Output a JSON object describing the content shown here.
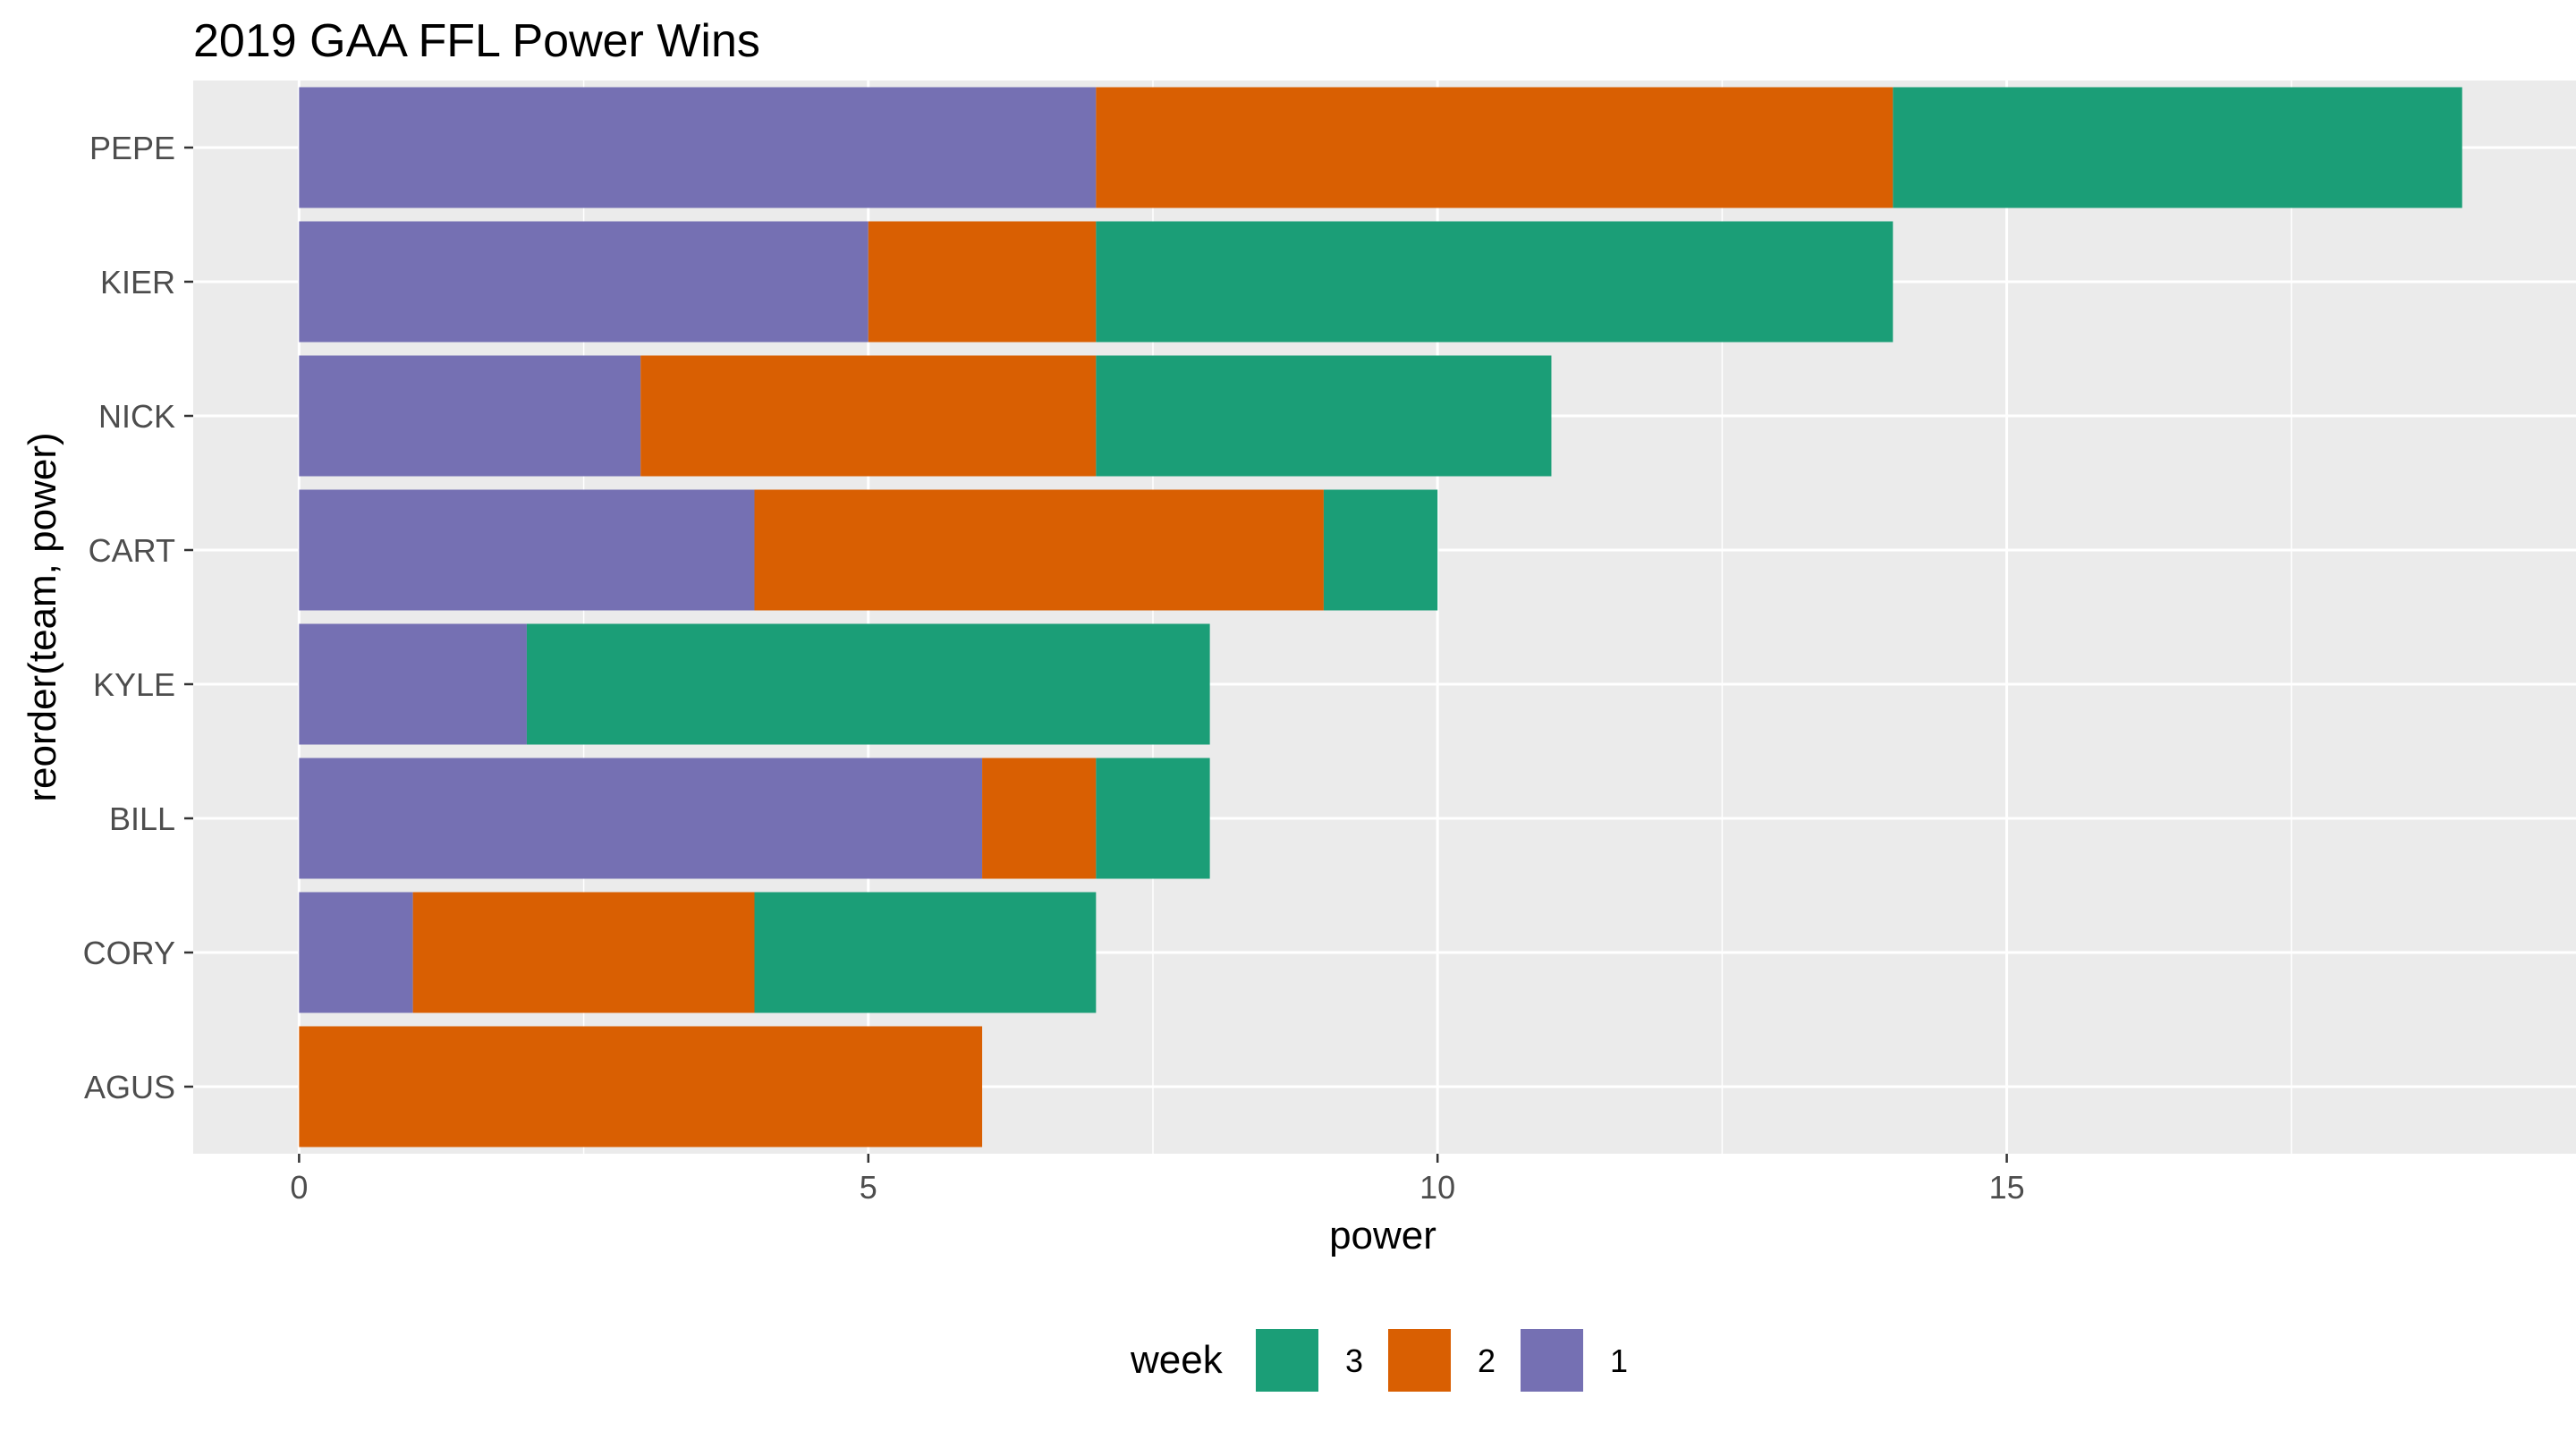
{
  "chart_data": {
    "type": "bar",
    "orientation": "horizontal",
    "stacked": true,
    "title": "2019 GAA FFL Power Wins",
    "xlabel": "power",
    "ylabel": "reorder(team, power)",
    "categories": [
      "PEPE",
      "KIER",
      "NICK",
      "CART",
      "KYLE",
      "BILL",
      "CORY",
      "AGUS"
    ],
    "series": [
      {
        "name": "1",
        "color": "#7570b3",
        "values": [
          7,
          5,
          3,
          4,
          2,
          6,
          1,
          0
        ]
      },
      {
        "name": "2",
        "color": "#d95f02",
        "values": [
          7,
          2,
          4,
          5,
          0,
          1,
          3,
          6
        ]
      },
      {
        "name": "3",
        "color": "#1b9e77",
        "values": [
          5,
          7,
          4,
          1,
          6,
          1,
          3,
          0
        ]
      }
    ],
    "stack_order_from_zero": [
      "1",
      "2",
      "3"
    ],
    "xlim": [
      -0.93,
      20.0
    ],
    "xticks": [
      0,
      5,
      10,
      15
    ],
    "xtick_labels": [
      "0",
      "5",
      "10",
      "15"
    ],
    "grid": true,
    "panel_background": "#ebebeb",
    "legend": {
      "title": "week",
      "position": "bottom",
      "order": [
        "3",
        "2",
        "1"
      ]
    }
  }
}
